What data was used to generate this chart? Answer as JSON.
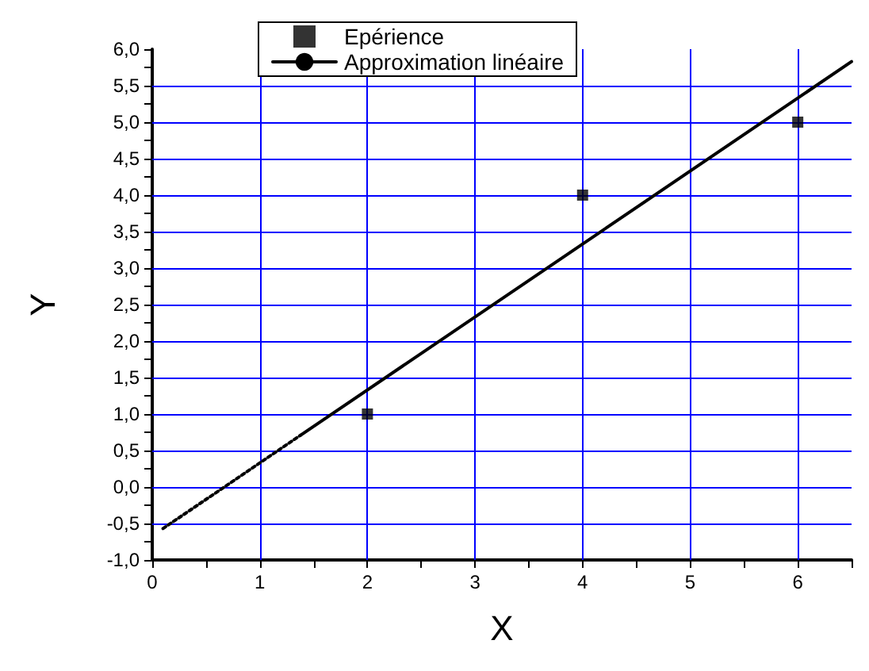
{
  "chart_data": {
    "type": "scatter",
    "xlabel": "X",
    "ylabel": "Y",
    "xlim": [
      0,
      6.5
    ],
    "ylim": [
      -1,
      6
    ],
    "xticks": [
      0,
      {
        "value": 0.5,
        "label": null
      },
      1,
      {
        "value": 1.5,
        "label": null
      },
      2,
      {
        "value": 2.5,
        "label": null
      },
      3,
      {
        "value": 3.5,
        "label": null
      },
      4,
      {
        "value": 4.5,
        "label": null
      },
      5,
      {
        "value": 5.5,
        "label": null
      },
      6,
      {
        "value": 6.5,
        "label": null
      }
    ],
    "yticks": [
      {
        "value": -1,
        "label": "-1,0"
      },
      {
        "value": -0.75,
        "label": null
      },
      {
        "value": -0.5,
        "label": "-0,5"
      },
      {
        "value": -0.25,
        "label": null
      },
      {
        "value": 0,
        "label": "0,0"
      },
      {
        "value": 0.25,
        "label": null
      },
      {
        "value": 0.5,
        "label": "0,5"
      },
      {
        "value": 0.75,
        "label": null
      },
      {
        "value": 1,
        "label": "1,0"
      },
      {
        "value": 1.25,
        "label": null
      },
      {
        "value": 1.5,
        "label": "1,5"
      },
      {
        "value": 1.75,
        "label": null
      },
      {
        "value": 2,
        "label": "2,0"
      },
      {
        "value": 2.25,
        "label": null
      },
      {
        "value": 2.5,
        "label": "2,5"
      },
      {
        "value": 2.75,
        "label": null
      },
      {
        "value": 3,
        "label": "3,0"
      },
      {
        "value": 3.25,
        "label": null
      },
      {
        "value": 3.5,
        "label": "3,5"
      },
      {
        "value": 3.75,
        "label": null
      },
      {
        "value": 4,
        "label": "4,0"
      },
      {
        "value": 4.25,
        "label": null
      },
      {
        "value": 4.5,
        "label": "4,5"
      },
      {
        "value": 4.75,
        "label": null
      },
      {
        "value": 5,
        "label": "5,0"
      },
      {
        "value": 5.25,
        "label": null
      },
      {
        "value": 5.5,
        "label": "5,5"
      },
      {
        "value": 5.75,
        "label": null
      },
      {
        "value": 6,
        "label": "6,0"
      }
    ],
    "grid": true,
    "legend": "top",
    "series": [
      {
        "name": "Epérience",
        "type": "scatter",
        "marker": "square",
        "color": "#000000",
        "x": [
          2,
          4,
          6
        ],
        "values": [
          1,
          4,
          5
        ]
      },
      {
        "name": "Approximation linéaire",
        "type": "line",
        "marker": "none",
        "line_style": "solid",
        "color": "#000000",
        "x": [
          1.38,
          6.5
        ],
        "values": [
          0.71,
          5.83
        ]
      },
      {
        "type": "line",
        "marker": "none",
        "line_style": "dotted",
        "color": "#000000",
        "x": [
          0.1,
          1.38
        ],
        "values": [
          -0.57,
          0.71
        ]
      }
    ]
  }
}
